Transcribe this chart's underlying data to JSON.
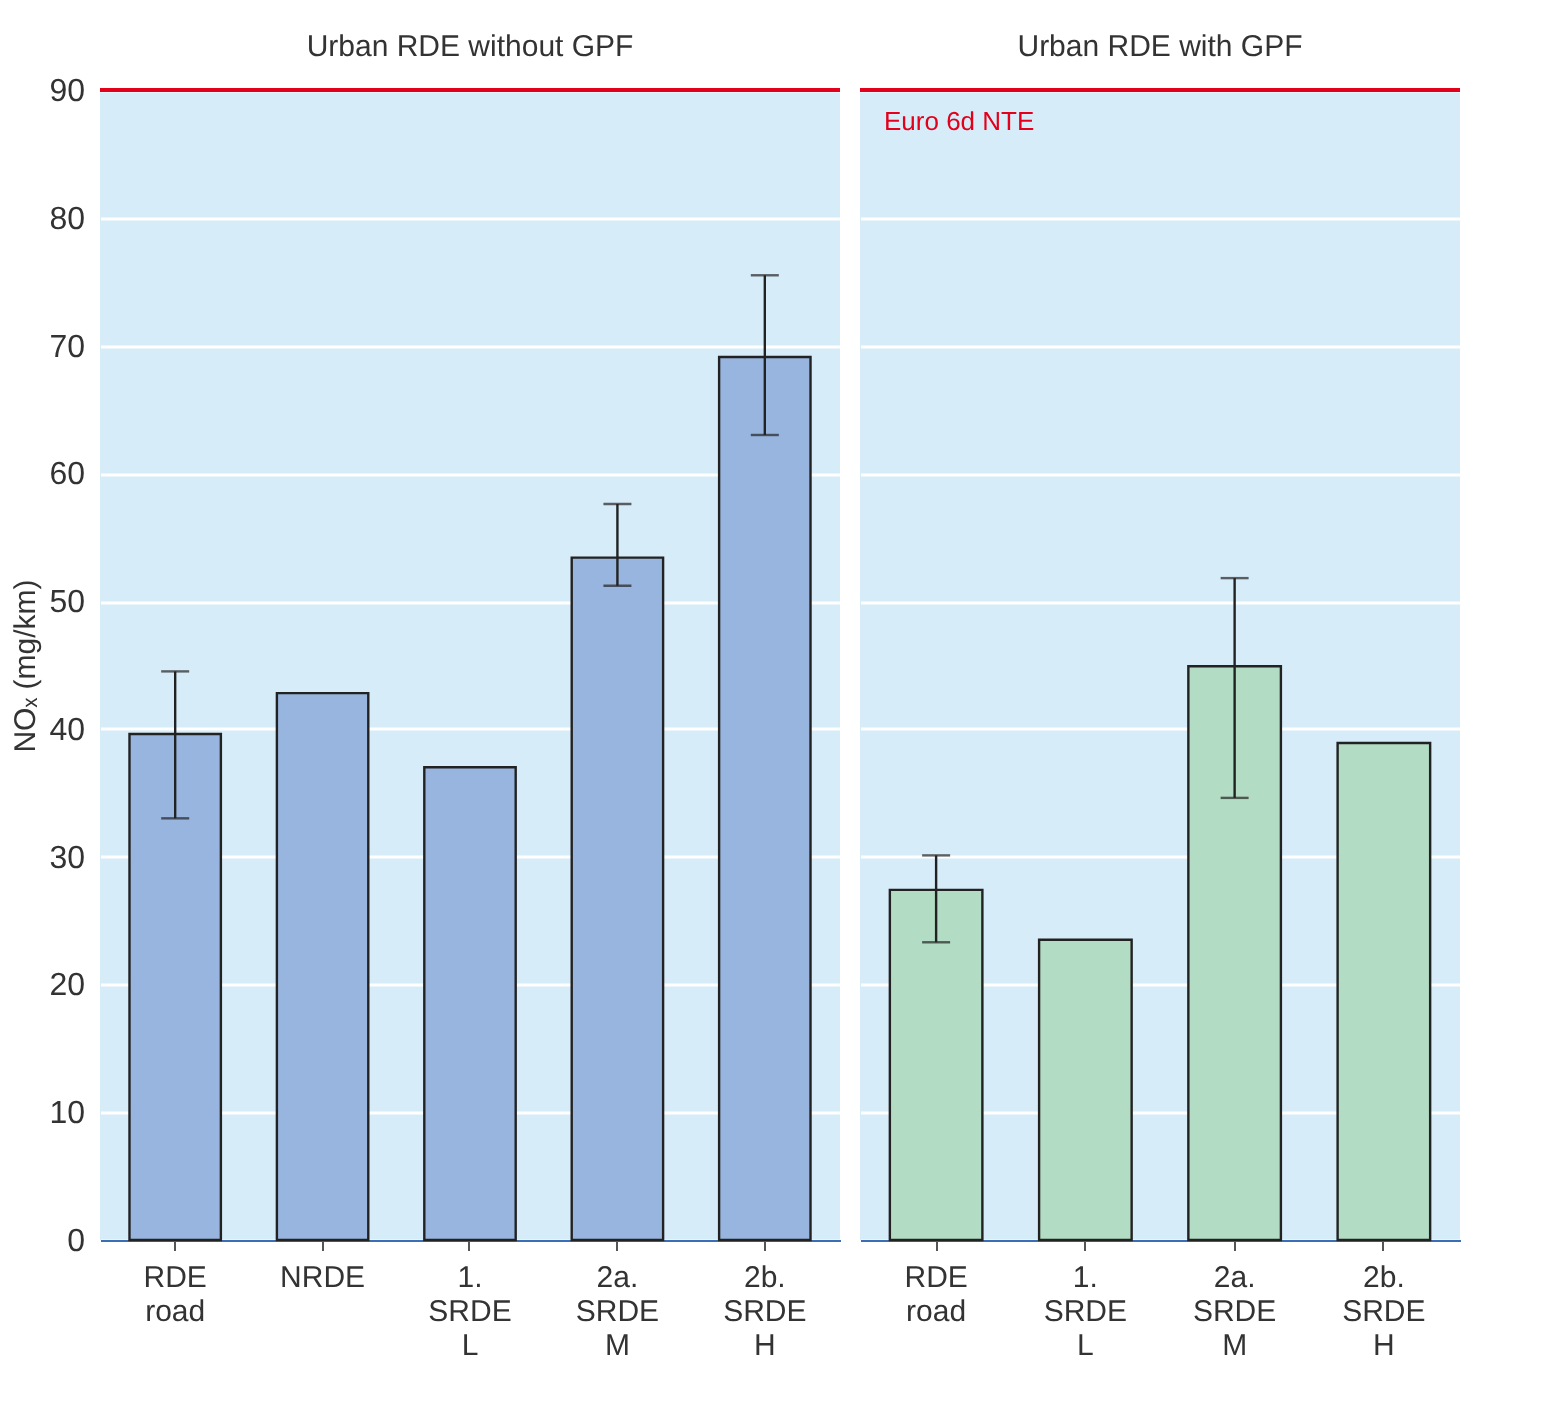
{
  "chart_data": [
    {
      "type": "bar",
      "title": "Urban RDE without GPF",
      "ylabel": "NOₓ (mg/km)",
      "categories": [
        "RDE\nroad",
        "NRDE",
        "1.\nSRDE\nL",
        "2a.\nSRDE\nM",
        "2b.\nSRDE\nH"
      ],
      "series": [
        {
          "color": "#97b5de",
          "values": [
            39.6,
            42.8,
            37.0,
            53.4,
            69.1
          ],
          "errors": [
            [
              33.0,
              44.5
            ],
            null,
            null,
            [
              51.2,
              57.6
            ],
            [
              63.0,
              75.5
            ]
          ]
        }
      ],
      "ylim": [
        0,
        90
      ],
      "yticks": [
        0,
        10,
        20,
        30,
        40,
        50,
        60,
        70,
        80,
        90
      ],
      "grid": "y",
      "ref_lines": [
        {
          "axis": "y",
          "value": 90,
          "color": "#e3001b"
        }
      ]
    },
    {
      "type": "bar",
      "title": "Urban RDE with GPF",
      "categories": [
        "RDE\nroad",
        "1.\nSRDE\nL",
        "2a.\nSRDE\nM",
        "2b.\nSRDE\nH"
      ],
      "series": [
        {
          "color": "#b3dcc4",
          "values": [
            27.4,
            23.5,
            44.9,
            38.9
          ],
          "errors": [
            [
              23.3,
              30.1
            ],
            null,
            [
              34.6,
              51.8
            ],
            null
          ]
        }
      ],
      "ylim": [
        0,
        90
      ],
      "yticks": [
        0,
        10,
        20,
        30,
        40,
        50,
        60,
        70,
        80,
        90
      ],
      "grid": "y",
      "tick_labels": "x",
      "ref_lines": [
        {
          "axis": "y",
          "value": 90,
          "color": "#e3001b",
          "label": "Euro 6d NTE"
        }
      ]
    }
  ]
}
